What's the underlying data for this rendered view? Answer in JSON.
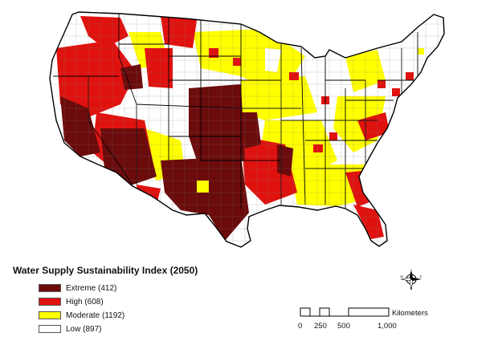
{
  "legend": {
    "title": "Water Supply Sustainability Index (2050)",
    "items": [
      {
        "key": "extreme",
        "label": "Extreme (412)",
        "color": "#6b0b0b"
      },
      {
        "key": "high",
        "label": "High (608)",
        "color": "#e0120f"
      },
      {
        "key": "moderate",
        "label": "Moderate (1192)",
        "color": "#ffff00"
      },
      {
        "key": "low",
        "label": "Low (897)",
        "color": "#ffffff"
      }
    ]
  },
  "scale": {
    "unit": "Kilometers",
    "ticks": [
      "0",
      "250",
      "500",
      "1,000"
    ]
  },
  "compass": {
    "icon": "north-arrow-compass-icon",
    "n": "N",
    "s": "S",
    "e": "E",
    "w": "W"
  },
  "map": {
    "region": "contiguous-united-states",
    "outline_color": "#000000"
  }
}
